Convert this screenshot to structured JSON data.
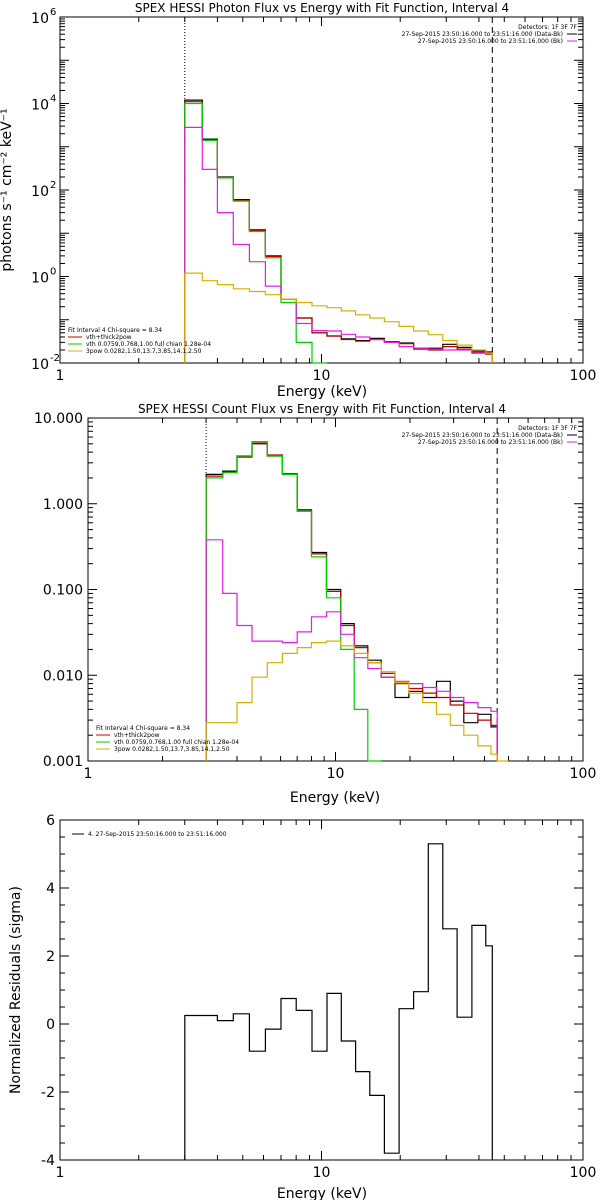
{
  "chart_data": [
    {
      "type": "line",
      "title": "SPEX HESSI Photon Flux vs Energy with Fit Function, Interval 4",
      "xlabel": "Energy (keV)",
      "ylabel": "photons s⁻¹ cm⁻² keV⁻¹",
      "xscale": "log",
      "yscale": "log",
      "xlim": [
        1,
        100
      ],
      "ylim": [
        0.01,
        1000000
      ],
      "xticks": [
        {
          "v": 1,
          "t": "1"
        },
        {
          "v": 10,
          "t": "10"
        },
        {
          "v": 100,
          "t": "100"
        }
      ],
      "yticks": [
        {
          "v": 0.01,
          "base": "10",
          "exp": "-2"
        },
        {
          "v": 1,
          "base": "10",
          "exp": "0"
        },
        {
          "v": 100,
          "base": "10",
          "exp": "2"
        },
        {
          "v": 10000,
          "base": "10",
          "exp": "4"
        },
        {
          "v": 1000000,
          "base": "10",
          "exp": "6"
        }
      ],
      "vlines": [
        {
          "x": 3,
          "style": "dotted"
        },
        {
          "x": 45,
          "style": "dashed"
        }
      ],
      "legend_tr": [
        "Detectors: 1F 3F 7F",
        "27-Sep-2015 23:50:16.000 to 23:51:16.000 (Data-Bk)",
        "27-Sep-2015 23:50:16.000 to 23:51:16.000 (Bk)"
      ],
      "legend_tr_colors": [
        "#000000",
        "#e020e0"
      ],
      "legend_bl": [
        "Fit Interval 4   Chi-square = 8.34",
        "vth+thick2pow",
        "vth 0.0759,0.768,1.00  full chian 1.28e-04",
        "3pow 0.0282,1.50,13.7,3.85,14.1,2.50"
      ],
      "legend_bl_colors": [
        "#c00000",
        "#00d000",
        "#d8b000"
      ],
      "edges": [
        3,
        3.5,
        4,
        4.6,
        5.3,
        6.1,
        7,
        8,
        9.2,
        10.5,
        11.9,
        13.5,
        15.3,
        17.4,
        19.8,
        22.5,
        25.6,
        29.1,
        33,
        37.6,
        42.5,
        45
      ],
      "series": [
        {
          "color": "#000000",
          "values": [
            12000,
            1500,
            200,
            60,
            12,
            3,
            0.3,
            0.11,
            0.05,
            0.042,
            0.036,
            0.033,
            0.037,
            0.031,
            0.029,
            0.022,
            0.022,
            0.027,
            0.023,
            0.019,
            0.018
          ]
        },
        {
          "color": "#c00000",
          "values": [
            11000,
            1450,
            195,
            58,
            11.5,
            2.9,
            0.3,
            0.11,
            0.05,
            0.042,
            0.035,
            0.032,
            0.035,
            0.03,
            0.028,
            0.021,
            0.02,
            0.024,
            0.021,
            0.017,
            0.016
          ]
        },
        {
          "color": "#00d000",
          "values": [
            10000,
            1400,
            190,
            55,
            11,
            2.7,
            0.25,
            0.03,
            0.01
          ]
        },
        {
          "color": "#e020e0",
          "values": [
            2800,
            300,
            30,
            5.5,
            2.2,
            0.6,
            0.3,
            0.082,
            0.056,
            0.055,
            0.046,
            0.04,
            0.035,
            0.03,
            0.024,
            0.022,
            0.021,
            0.02,
            0.02,
            0.018,
            0.017
          ]
        },
        {
          "color": "#d8b000",
          "values": [
            1.2,
            0.8,
            0.65,
            0.52,
            0.45,
            0.38,
            0.3,
            0.25,
            0.21,
            0.19,
            0.16,
            0.13,
            0.11,
            0.09,
            0.07,
            0.055,
            0.045,
            0.033,
            0.026,
            0.02,
            0.017
          ]
        }
      ]
    },
    {
      "type": "line",
      "title": "SPEX HESSI Count Flux vs Energy with Fit Function, Interval 4",
      "xlabel": "Energy (keV)",
      "ylabel": "",
      "xscale": "log",
      "yscale": "log",
      "xlim": [
        1,
        100
      ],
      "ylim": [
        0.001,
        10
      ],
      "xticks": [
        {
          "v": 1,
          "t": "1"
        },
        {
          "v": 10,
          "t": "10"
        },
        {
          "v": 100,
          "t": "100"
        }
      ],
      "yticks": [
        {
          "v": 0.001,
          "t": "0.001"
        },
        {
          "v": 0.01,
          "t": "0.010"
        },
        {
          "v": 0.1,
          "t": "0.100"
        },
        {
          "v": 1,
          "t": "1.000"
        },
        {
          "v": 10,
          "t": "10.000"
        }
      ],
      "vlines": [
        {
          "x": 3,
          "style": "dotted"
        },
        {
          "x": 45,
          "style": "dashed"
        }
      ],
      "legend_tr": [
        "Detectors: 1F 3F 7F",
        "27-Sep-2015 23:50:16.000 to 23:51:16.000 (Data-Bk)",
        "27-Sep-2015 23:50:16.000 to 23:51:16.000 (Bk)"
      ],
      "legend_tr_colors": [
        "#000000",
        "#e020e0"
      ],
      "legend_bl": [
        "Fit Interval 4   Chi-square = 8.34",
        "vth+thick2pow",
        "vth 0.0759,0.768,1.00  full chian 1.28e-04",
        "3pow 0.0282,1.50,13.7,3.85,14.1,2.50"
      ],
      "legend_bl_colors": [
        "#c00000",
        "#00d000",
        "#d8b000"
      ],
      "edges": [
        3,
        3.5,
        4,
        4.6,
        5.3,
        6.1,
        7,
        8,
        9.2,
        10.5,
        11.9,
        13.5,
        15.3,
        17.4,
        19.8,
        22.5,
        25.6,
        29.1,
        33,
        37.6,
        42.5,
        45,
        50
      ],
      "series": [
        {
          "color": "#000000",
          "values": [
            2.2,
            2.4,
            3.6,
            5.0,
            3.6,
            2.2,
            0.85,
            0.27,
            0.1,
            0.04,
            0.022,
            0.015,
            0.0095,
            0.0055,
            0.0065,
            0.0055,
            0.0085,
            0.005,
            0.0028,
            0.0035,
            0.0025
          ]
        },
        {
          "color": "#c00000",
          "values": [
            2.1,
            2.35,
            3.5,
            5.1,
            3.7,
            2.25,
            0.82,
            0.26,
            0.095,
            0.038,
            0.021,
            0.014,
            0.0105,
            0.008,
            0.007,
            0.0062,
            0.0055,
            0.0045,
            0.0036,
            0.003,
            0.0026
          ]
        },
        {
          "color": "#00d000",
          "values": [
            2.0,
            2.3,
            3.6,
            5.3,
            3.6,
            2.2,
            0.82,
            0.24,
            0.08,
            0.02,
            0.004,
            0.0008
          ]
        },
        {
          "color": "#e020e0",
          "values": [
            0.38,
            0.09,
            0.038,
            0.025,
            0.025,
            0.024,
            0.032,
            0.048,
            0.055,
            0.03,
            0.016,
            0.012,
            0.0095,
            0.0085,
            0.008,
            0.0072,
            0.0065,
            0.0055,
            0.0048,
            0.0042,
            0.0038
          ]
        },
        {
          "color": "#d8b000",
          "values": [
            0.0028,
            0.0028,
            0.0048,
            0.0095,
            0.014,
            0.018,
            0.021,
            0.024,
            0.025,
            0.022,
            0.018,
            0.014,
            0.011,
            0.0082,
            0.0062,
            0.0048,
            0.0035,
            0.0026,
            0.002,
            0.0015,
            0.0012,
            0.0009
          ]
        }
      ]
    },
    {
      "type": "line",
      "title": "",
      "xlabel": "Energy (keV)",
      "ylabel": "Normalized Residuals (sigma)",
      "xscale": "log",
      "yscale": "linear",
      "xlim": [
        1,
        100
      ],
      "ylim": [
        -4,
        6
      ],
      "xticks": [
        {
          "v": 1,
          "t": "1"
        },
        {
          "v": 10,
          "t": "10"
        },
        {
          "v": 100,
          "t": "100"
        }
      ],
      "yticks": [
        {
          "v": -4,
          "t": "-4"
        },
        {
          "v": -2,
          "t": "-2"
        },
        {
          "v": 0,
          "t": "0"
        },
        {
          "v": 2,
          "t": "2"
        },
        {
          "v": 4,
          "t": "4"
        },
        {
          "v": 6,
          "t": "6"
        }
      ],
      "legend_tl": "4. 27-Sep-2015 23:50:16.000 to 23:51:16.000",
      "edges": [
        3,
        3.5,
        4,
        4.6,
        5.3,
        6.1,
        7,
        8,
        9.2,
        10.5,
        11.9,
        13.5,
        15.3,
        17.4,
        19.8,
        22.5,
        25.6,
        29.1,
        33,
        37.6,
        42.5,
        45
      ],
      "series": [
        {
          "color": "#000000",
          "values": [
            0.25,
            0.25,
            0.1,
            0.3,
            -0.8,
            -0.15,
            0.75,
            0.4,
            -0.8,
            0.9,
            -0.5,
            -1.4,
            -2.1,
            -3.8,
            0.45,
            0.95,
            5.3,
            2.8,
            0.2,
            2.9,
            2.3
          ]
        }
      ]
    }
  ]
}
